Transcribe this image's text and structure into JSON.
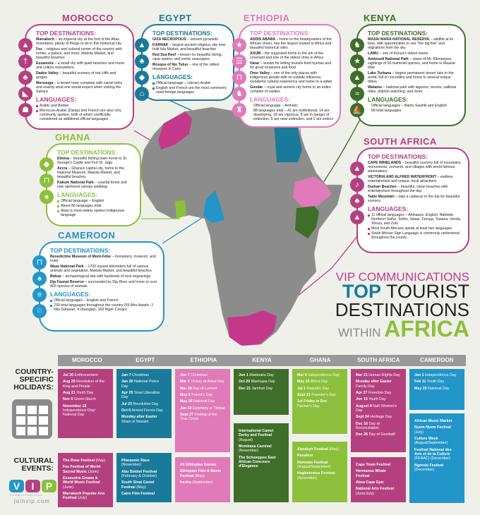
{
  "colors": {
    "morocco": "#b5407f",
    "egypt": "#1a7a9a",
    "ethiopia": "#e07ab8",
    "kenya": "#3f6e2a",
    "ghana": "#8cc03c",
    "south_africa": "#b5407f",
    "cameroon": "#2295c9",
    "map": "#8c8c8c",
    "background": "#f0f0eb"
  },
  "title": {
    "line1": "VIP COMMUNICATIONS",
    "top": "TOP",
    "tourist": " TOURIST",
    "destinations": "DESTINATIONS",
    "within": "WITHIN ",
    "africa": "AFRICA"
  },
  "labels": {
    "top_destinations": "TOP DESTINATIONS:",
    "languages": "LANGUAGES:",
    "holidays": "COUNTRY-SPECIFIC HOLIDAYS:",
    "events": "CULTURAL EVENTS:"
  },
  "logo": {
    "letters": [
      "V",
      "I",
      "P"
    ],
    "sub": "communications",
    "site": "joinvip.com"
  },
  "countries": [
    {
      "id": "morocco",
      "name": "MOROCCO",
      "icons": [
        "mountain-icon",
        "cross-icon",
        "palm-tree-icon",
        "boot-icon",
        "desert-icon"
      ],
      "destinations": [
        {
          "name": "Marrakech",
          "desc": " – an imperial city at the foot of the Atlas mountains, plenty of things to do in this historical city"
        },
        {
          "name": "Fes",
          "desc": " – religious and cultural center of the country with tombs, a palace, and more, Makola Market, and beautiful beaches"
        },
        {
          "name": "Essaouira",
          "desc": " – a small city with quiet beaches and music and culture everywhere"
        },
        {
          "name": "Dades Valley",
          "desc": " – beautiful scenery of red cliffs and gorges"
        },
        {
          "name": "Merzouga",
          "desc": " – a desert town complete with camel treks and exactly what one would expect when visiting the Sahara"
        }
      ],
      "languages": [
        "Arabic and Berber",
        "Moroccan Arabic (Darija) and French are also very commonly spoken, both of which unofficially considered as additional official languages"
      ],
      "bullets": true,
      "holidays": [
        {
          "d": "Jul 30",
          "t": "Enthronement"
        },
        {
          "d": "Aug 20",
          "t": "Revolution of the King and People"
        },
        {
          "d": "Aug 21",
          "t": "Youth Day"
        },
        {
          "d": "Nov 6",
          "t": "Green March"
        },
        {
          "d": "November 18",
          "t": "Independence Day/ National Day"
        }
      ],
      "events": [
        {
          "n": "The Rose Festival",
          "w": " (May)"
        },
        {
          "n": "Fes Festival of World Sacred Music",
          "w": " (June)"
        },
        {
          "n": "Essauoira Gnawa & World Music Festival",
          "w": " (June)"
        },
        {
          "n": "Marrakech Popular Arts Festival",
          "w": " (July)"
        }
      ]
    },
    {
      "id": "egypt",
      "name": "EGYPT",
      "icons": [
        "pyramid-icon",
        "palm-tree-icon",
        "fish-icon",
        "mosque-icon"
      ],
      "destinations": [
        {
          "name": "GIZA NECROPOLIS",
          "desc": " – ancient pyramids"
        },
        {
          "name": "KARNAK",
          "desc": " – largest ancient religious site ever built lola Market, and beautiful beaches"
        },
        {
          "name": "Red Sea Reef",
          "desc": " – known for beautiful diving, clear waters, and exotic seascapes"
        },
        {
          "name": "Mosque of Ibn Tulun",
          "desc": " – one of the oldest mosques in Cairo"
        }
      ],
      "languages": [
        "Official language – Literary Arabic",
        "English and French are the most commonly used foreign languages"
      ],
      "bullets": true,
      "holidays": [
        {
          "d": "Jan 7",
          "t": "Christmas"
        },
        {
          "d": "Jan 25",
          "t": "National Police Day"
        },
        {
          "d": "Apr 25",
          "t": "Sinai Liberation Day"
        },
        {
          "d": "Jul 23",
          "t": "Revolution Day"
        },
        {
          "d": "Oct 6",
          "t": "Armed Forces Day"
        },
        {
          "d": "Monday after Easter",
          "t": "Sham el Nessim"
        }
      ],
      "events": [
        {
          "n": "Pharaonic Race",
          "w": " (November)"
        },
        {
          "n": "Abu Simbel Festival",
          "w": " (February & October)"
        },
        {
          "n": "South Sinai Camel Festival",
          "w": " (May)"
        },
        {
          "n": "Cairo Film Festival",
          "w": ""
        }
      ]
    },
    {
      "id": "ethiopia",
      "name": "ETHIOPIA",
      "icons": [
        "star-icon",
        "market-icon",
        "museum-icon",
        "lion-icon",
        "castle-icon"
      ],
      "destinations": [
        {
          "name": "ADDIS ABABA",
          "desc": " – home to the headquarters of the African Union, has the largest market in Africa and beautiful historical sites"
        },
        {
          "name": "AXUM",
          "desc": " – the supposed home to the ark of the covenant and one of the oldest cities in Africa"
        },
        {
          "name": "Harar",
          "desc": " – known for letting tourists feed hyenas and for great museums and food"
        },
        {
          "name": "Omo Valley",
          "desc": " – one of the only places with indigenous people with no outside influence, wonderful cultural experience and home to a safari"
        },
        {
          "name": "Gondar",
          "desc": " – royal and ancient city home to an entire complex of castles"
        }
      ],
      "languages": [
        "Official language – Amharic",
        "88 languages total – 41 are institutional, 14 are developing, 18 are vigorous, 8 are in danger of extinction, 5 are near extinction, and 2 are extinct"
      ],
      "bullets": false,
      "holidays": [
        {
          "d": "Jan 7",
          "t": "Christmas"
        },
        {
          "d": "Mar 2",
          "t": "Victory at Adwa Day"
        },
        {
          "d": "Mar 28",
          "t": "Day of Lament"
        },
        {
          "d": "May 5",
          "t": "Patriot's Day"
        },
        {
          "d": "May 28",
          "t": "National Day"
        },
        {
          "d": "Jan 19",
          "t": "Epiphany or Timkat"
        },
        {
          "d": "Sept 27",
          "t": "Finding of the True Cross"
        }
      ],
      "events": [
        {
          "n": "All Ethiopian Games",
          "w": ""
        },
        {
          "n": "Ethiopian Film & Music Festival",
          "w": " (May)"
        },
        {
          "n": "Irecha",
          "w": " (September)"
        }
      ]
    },
    {
      "id": "kenya",
      "name": "KENYA",
      "icons": [
        "lion-icon",
        "star-icon",
        "mountain-icon",
        "crocodile-icon",
        "sailboat-icon"
      ],
      "destinations": [
        {
          "name": "MASAI MARA NATIONAL RESERVE",
          "desc": " – wildlife at its best, with opportunities to see \"the big five\" and migrations from the sky"
        },
        {
          "name": "LAMU",
          "desc": " – one of Kenya's oldest towns"
        },
        {
          "name": "Amboseli National Park",
          "desc": " – views of Mt. Kilimanjaro, sightings of 50 mammal species, and home to Maasai tribe"
        },
        {
          "name": "Lake Turkana",
          "desc": " – largest permanent desert lake in the world, full of crocodiles and home to several unique tribes"
        },
        {
          "name": "Watamu",
          "desc": " – national park with lagoons, resorts, sailboat rides, dolphin watching, and more"
        }
      ],
      "languages": [
        "Official languages – Bantu Swahili and English",
        "68 total languages"
      ],
      "bullets": false,
      "holidays": [
        {
          "d": "Jun 1",
          "t": "Madaraka Day"
        },
        {
          "d": "Oct 20",
          "t": "Mashujaa Day"
        },
        {
          "d": "Dec 21",
          "t": "Jamhuri Day"
        }
      ],
      "events": [
        {
          "n": "International Camel Derby and Festival",
          "w": " (August)"
        },
        {
          "n": "Mombasa Carnival",
          "w": " (November)"
        },
        {
          "n": "The Schweppes East African Concours d'Elegance",
          "w": ""
        }
      ]
    },
    {
      "id": "ghana",
      "name": "GHANA",
      "icons": [
        "fish-icon",
        "museum-icon",
        "tree-icon"
      ],
      "destinations": [
        {
          "name": "Elmina",
          "desc": " – beautiful fishing town home to St. George's Castle and Fort St. Jago"
        },
        {
          "name": "Accra",
          "desc": " – Ghana's capital city, home to the National Museum, Makola Market, and beautiful beaches"
        },
        {
          "name": "Kakum National Park",
          "desc": " – coastal forest and rare rainforest canopy walkway"
        }
      ],
      "languages": [
        "Official language – English",
        "About 80 languages total",
        "Akan is most widely spoken indigenous language"
      ],
      "bullets": true,
      "holidays": [
        {
          "d": "Mar 6",
          "t": "Independence Day"
        },
        {
          "d": "May 25",
          "t": "Africa Day"
        },
        {
          "d": "Jul 1",
          "t": "Republic Day"
        },
        {
          "d": "Sept 21",
          "t": "Founder's Day"
        },
        {
          "d": "1st Friday in Dec",
          "t": "Farmer's Day"
        }
      ],
      "events": [
        {
          "n": "Aboakyir Festival",
          "w": " (May)"
        },
        {
          "n": "Panafest",
          "w": ""
        },
        {
          "n": "Homowo Festival",
          "w": " (August/September)"
        },
        {
          "n": "Hogbetsotso Festival",
          "w": " (November)"
        }
      ]
    },
    {
      "id": "south_africa",
      "name": "SOUTH AFRICA",
      "icons": [
        "mountain-icon",
        "music-icon",
        "palm-tree-icon",
        "table-mountain-icon"
      ],
      "destinations": [
        {
          "name": "CAPE WINELANDS",
          "desc": " – beautiful scenery full of mountains, monuments, orchards, and villages with world famous winemakers"
        },
        {
          "name": "VICTORIA AND ALFRED WATERFRONT",
          "desc": " – endless entertainment and unique, local attractions"
        },
        {
          "name": "Durban Beaches",
          "desc": " – beautiful, clean beaches with entertainment throughout the day"
        },
        {
          "name": "Table Mountain",
          "desc": " – take a cablecar to the top for beautiful scenery"
        }
      ],
      "languages": [
        "11 official languages – Afrikaans, English, Ndebele, Northern Sotho, Sotho, Swazi, Tsonga, Tswana, Venda, Xhosa, and Zulu",
        "Most South Africans speak at least two languages",
        "South African Sign Language is commonly understood throughout the county"
      ],
      "bullets": true,
      "holidays": [
        {
          "d": "Mar 21",
          "t": "Human Rights Day"
        },
        {
          "d": "Monday after Easter",
          "t": "Family Day"
        },
        {
          "d": "Apr 27",
          "t": "Freedom Day"
        },
        {
          "d": "Jun 16",
          "t": "Youth Day"
        },
        {
          "d": "August 9",
          "t": "Nat'l Women's Day"
        },
        {
          "d": "Sept 24",
          "t": "Heritage Day"
        },
        {
          "d": "Dec 16",
          "t": "Day of Reconciliation"
        },
        {
          "d": "Dec 26",
          "t": "Day of Goodwill"
        }
      ],
      "events": [
        {
          "n": "Cape Town Festival",
          "w": ""
        },
        {
          "n": "Hermanus Whale Festival",
          "w": ""
        },
        {
          "n": "Absa Cape Epic",
          "w": ""
        },
        {
          "n": "National Arts Festival",
          "w": " (June/July)"
        }
      ]
    },
    {
      "id": "cameroon",
      "name": "CAMEROON",
      "icons": [
        "museum-icon",
        "tree-icon",
        "engraving-icon",
        "llama-icon"
      ],
      "destinations": [
        {
          "name": "Benedictine Museum of Mont-Febe",
          "desc": " – monastery, museum, and hotel"
        },
        {
          "name": "Waza National Park",
          "desc": " – 1700 square kilometers full of various animals and vegetation, Makola Market, and beautiful beaches"
        },
        {
          "name": "Bidzar",
          "desc": " – archaeological site with hundreds of rock engravings"
        },
        {
          "name": "Dja Faunal Reserve",
          "desc": " – surrounded by Dja River and home to over 400 species of animals"
        }
      ],
      "languages": [
        "Official languages – English and French",
        "230 total languages throughout the country (55 Afro-Asiatic, 2 Nilo-Saharan, 4 Ubangian, 169 Niger-Congo)"
      ],
      "bullets": true,
      "holidays": [
        {
          "d": "Jan 1",
          "t": "Independence Day"
        },
        {
          "d": "Feb 11",
          "t": "Youth Day"
        },
        {
          "d": "May 20",
          "t": "National Day"
        }
      ],
      "events": [
        {
          "n": "African Music Market",
          "w": ""
        },
        {
          "n": "Nyem-Nyem Festival",
          "w": " (July)"
        },
        {
          "n": "Culture Week",
          "w": " (August/September)"
        },
        {
          "n": "Festival National des Arts et de la Culture",
          "w": " (FENAC) (December)"
        },
        {
          "n": "Ngondo Festival",
          "w": " (December)"
        }
      ]
    }
  ]
}
